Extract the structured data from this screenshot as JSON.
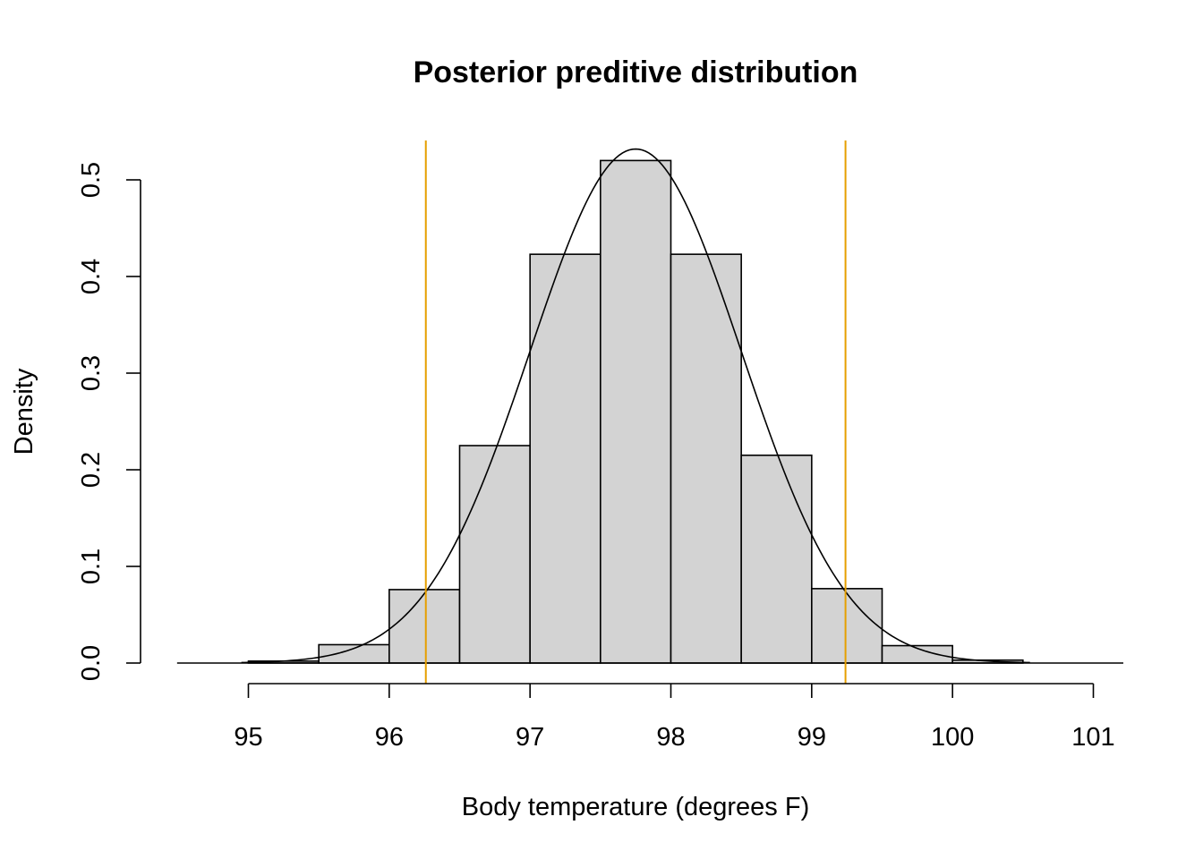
{
  "chart_data": {
    "type": "bar",
    "subtype": "histogram",
    "title": "Posterior preditive distribution",
    "xlabel": "Body temperature (degrees F)",
    "ylabel": "Density",
    "xlim": [
      94.5,
      101.2
    ],
    "ylim": [
      0,
      0.5
    ],
    "x_ticks": [
      95,
      96,
      97,
      98,
      99,
      100,
      101
    ],
    "y_ticks": [
      0.0,
      0.1,
      0.2,
      0.3,
      0.4,
      0.5
    ],
    "y_tick_labels": [
      "0.0",
      "0.1",
      "0.2",
      "0.3",
      "0.4",
      "0.5"
    ],
    "bins": [
      {
        "start": 95.0,
        "end": 95.5,
        "density": 0.002
      },
      {
        "start": 95.5,
        "end": 96.0,
        "density": 0.019
      },
      {
        "start": 96.0,
        "end": 96.5,
        "density": 0.076
      },
      {
        "start": 96.5,
        "end": 97.0,
        "density": 0.225
      },
      {
        "start": 97.0,
        "end": 97.5,
        "density": 0.423
      },
      {
        "start": 97.5,
        "end": 98.0,
        "density": 0.52
      },
      {
        "start": 98.0,
        "end": 98.5,
        "density": 0.423
      },
      {
        "start": 98.5,
        "end": 99.0,
        "density": 0.215
      },
      {
        "start": 99.0,
        "end": 99.5,
        "density": 0.077
      },
      {
        "start": 99.5,
        "end": 100.0,
        "density": 0.018
      },
      {
        "start": 100.0,
        "end": 100.5,
        "density": 0.003
      }
    ],
    "density_curve": {
      "mean": 97.75,
      "sd": 0.75,
      "x_range": [
        94.95,
        100.55
      ]
    },
    "interval_lines": [
      96.26,
      99.24
    ],
    "grid": false,
    "colors": {
      "bar_fill": "#d3d3d3",
      "bar_border": "#000000",
      "interval_line": "#e69f00",
      "curve": "#000000"
    }
  }
}
